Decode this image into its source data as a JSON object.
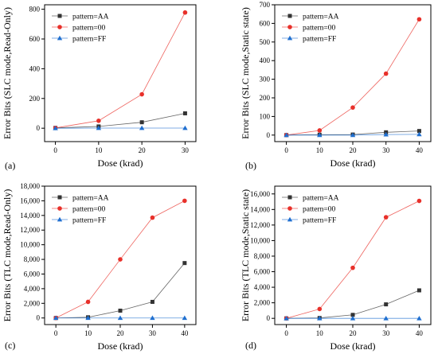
{
  "colors": {
    "AA": "#333333",
    "00": "#e8302a",
    "FF": "#1f6fd0"
  },
  "chart_data": [
    {
      "type": "line",
      "panel_label": "(a)",
      "xlabel": "Dose (krad)",
      "ylabel": "Error Bits (SLC mode,Read-Only)",
      "x": [
        0,
        10,
        20,
        30
      ],
      "xticks": [
        "0",
        "10",
        "20",
        "30"
      ],
      "yticks": [
        "0",
        "200",
        "400",
        "600",
        "800"
      ],
      "xlim": [
        -2.5,
        32.5
      ],
      "ylim": [
        -90,
        830
      ],
      "series": [
        {
          "name": "pattern=AA",
          "key": "AA",
          "values": [
            2,
            12,
            40,
            100
          ]
        },
        {
          "name": "pattern=00",
          "key": "00",
          "values": [
            2,
            50,
            228,
            778
          ]
        },
        {
          "name": "pattern=FF",
          "key": "FF",
          "values": [
            0,
            1,
            1,
            1
          ]
        }
      ]
    },
    {
      "type": "line",
      "panel_label": "(b)",
      "xlabel": "Dose (krad)",
      "ylabel": "Error Bits (SLC mode,Static state)",
      "x": [
        0,
        10,
        20,
        30,
        40
      ],
      "xticks": [
        "0",
        "10",
        "20",
        "30",
        "40"
      ],
      "yticks": [
        "0",
        "100",
        "200",
        "300",
        "400",
        "500",
        "600",
        "700"
      ],
      "xlim": [
        -3.5,
        43.5
      ],
      "ylim": [
        -35,
        700
      ],
      "series": [
        {
          "name": "pattern=AA",
          "key": "AA",
          "values": [
            0,
            2,
            3,
            15,
            22
          ]
        },
        {
          "name": "pattern=00",
          "key": "00",
          "values": [
            0,
            25,
            148,
            330,
            622
          ]
        },
        {
          "name": "pattern=FF",
          "key": "FF",
          "values": [
            0,
            0,
            0,
            3,
            4
          ]
        }
      ]
    },
    {
      "type": "line",
      "panel_label": "(c)",
      "xlabel": "Dose (krad)",
      "ylabel": "Error Bits (TLC mode,Read-Only)",
      "x": [
        0,
        10,
        20,
        30,
        40
      ],
      "xticks": [
        "0",
        "10",
        "20",
        "30",
        "40"
      ],
      "yticks": [
        "0",
        "2,000",
        "4,000",
        "6,000",
        "8,000",
        "10,000",
        "12,000",
        "14,000",
        "16,000",
        "18,000"
      ],
      "xlim": [
        -3.5,
        43.5
      ],
      "ylim": [
        -900,
        18000
      ],
      "series": [
        {
          "name": "pattern=AA",
          "key": "AA",
          "values": [
            0,
            100,
            1000,
            2200,
            7500
          ]
        },
        {
          "name": "pattern=00",
          "key": "00",
          "values": [
            0,
            2200,
            8000,
            13700,
            16000
          ]
        },
        {
          "name": "pattern=FF",
          "key": "FF",
          "values": [
            0,
            0,
            0,
            0,
            0
          ]
        }
      ]
    },
    {
      "type": "line",
      "panel_label": "(d)",
      "xlabel": "Dose (krad)",
      "ylabel": "Error Bits (TLC mode,Static state)",
      "x": [
        0,
        10,
        20,
        30,
        40
      ],
      "xticks": [
        "0",
        "10",
        "20",
        "30",
        "40"
      ],
      "yticks": [
        "0",
        "2,000",
        "4,000",
        "6,000",
        "8,000",
        "10,000",
        "12,000",
        "14,000",
        "16,000"
      ],
      "xlim": [
        -3.5,
        43.5
      ],
      "ylim": [
        -800,
        17000
      ],
      "series": [
        {
          "name": "pattern=AA",
          "key": "AA",
          "values": [
            0,
            50,
            450,
            1800,
            3600
          ]
        },
        {
          "name": "pattern=00",
          "key": "00",
          "values": [
            0,
            1200,
            6500,
            13000,
            15100
          ]
        },
        {
          "name": "pattern=FF",
          "key": "FF",
          "values": [
            0,
            0,
            0,
            0,
            0
          ]
        }
      ]
    }
  ]
}
